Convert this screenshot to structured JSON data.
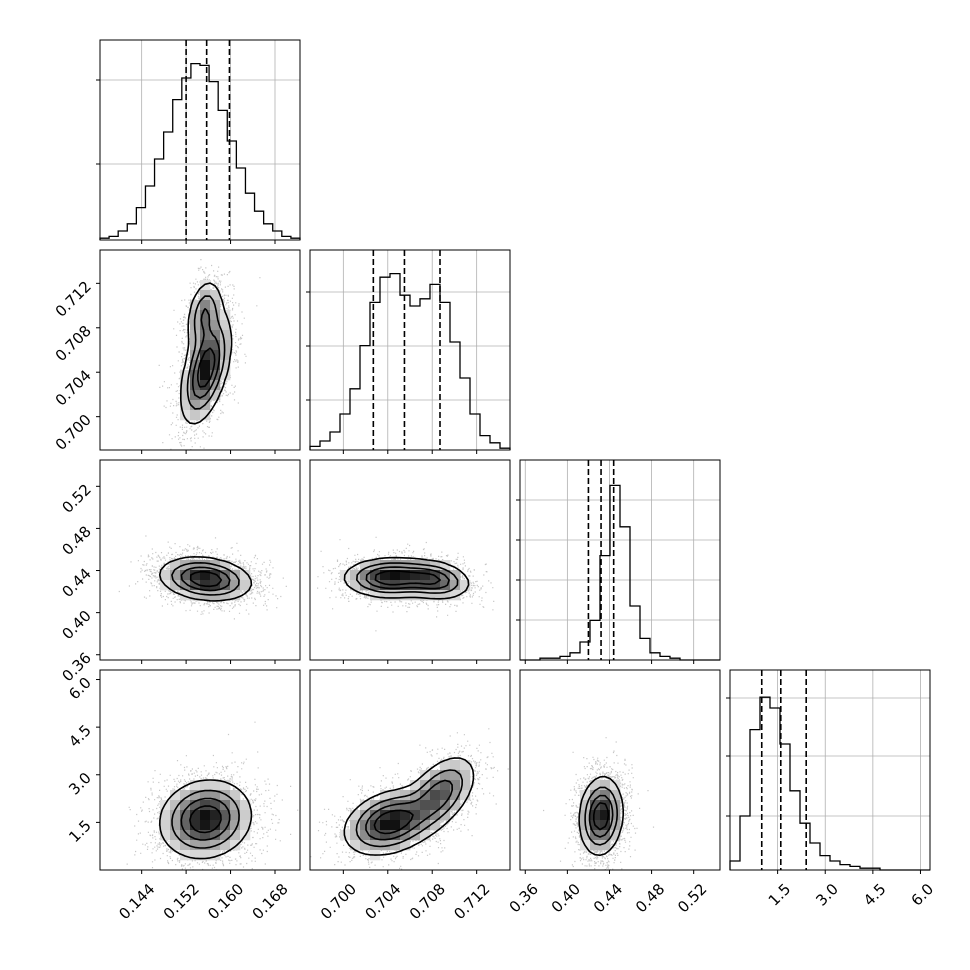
{
  "chart_data": {
    "type": "corner",
    "title": "",
    "parameters": [
      {
        "ticks": [
          0.144,
          0.152,
          0.16,
          0.168
        ],
        "tick_labels": [
          "0.144",
          "0.152",
          "0.160",
          "0.168"
        ],
        "range": [
          0.1365,
          0.1725
        ]
      },
      {
        "ticks": [
          0.7,
          0.704,
          0.708,
          0.712
        ],
        "tick_labels": [
          "0.700",
          "0.704",
          "0.708",
          "0.712"
        ],
        "range": [
          0.697,
          0.715
        ]
      },
      {
        "ticks": [
          0.36,
          0.4,
          0.44,
          0.48,
          0.52
        ],
        "tick_labels": [
          "0.36",
          "0.40",
          "0.44",
          "0.48",
          "0.52"
        ],
        "range": [
          0.355,
          0.545
        ]
      },
      {
        "ticks": [
          1.5,
          3.0,
          4.5,
          6.0
        ],
        "tick_labels": [
          "1.5",
          "3.0",
          "4.5",
          "6.0"
        ],
        "range": [
          0.0,
          6.3
        ]
      }
    ],
    "quantiles": [
      [
        0.152,
        0.1557,
        0.1598
      ],
      [
        0.7027,
        0.7055,
        0.7087
      ],
      [
        0.42,
        0.432,
        0.444
      ],
      [
        1.0,
        1.6,
        2.4
      ]
    ],
    "histograms": [
      {
        "edges_range": [
          0.1365,
          0.1725
        ],
        "counts": [
          0.01,
          0.02,
          0.05,
          0.09,
          0.18,
          0.3,
          0.45,
          0.6,
          0.78,
          0.9,
          0.98,
          0.97,
          0.88,
          0.72,
          0.55,
          0.4,
          0.26,
          0.16,
          0.09,
          0.05,
          0.02,
          0.01
        ],
        "ygrid": [
          0.38,
          0.8
        ]
      },
      {
        "edges_range": [
          0.697,
          0.715
        ],
        "counts": [
          0.02,
          0.05,
          0.1,
          0.2,
          0.34,
          0.58,
          0.82,
          0.96,
          0.98,
          0.86,
          0.8,
          0.84,
          0.92,
          0.82,
          0.6,
          0.4,
          0.2,
          0.08,
          0.04,
          0.01
        ],
        "ygrid": [
          0.25,
          0.52,
          0.79
        ]
      },
      {
        "edges_range": [
          0.355,
          0.545
        ],
        "counts": [
          0.0,
          0.0,
          0.01,
          0.01,
          0.02,
          0.04,
          0.1,
          0.22,
          0.58,
          0.97,
          0.74,
          0.3,
          0.12,
          0.04,
          0.02,
          0.01,
          0.0,
          0.0,
          0.0,
          0.0
        ],
        "ygrid": [
          0.2,
          0.4,
          0.6,
          0.8
        ]
      },
      {
        "edges_range": [
          0.0,
          6.3
        ],
        "counts": [
          0.05,
          0.3,
          0.78,
          0.96,
          0.9,
          0.7,
          0.44,
          0.26,
          0.15,
          0.08,
          0.05,
          0.03,
          0.02,
          0.01,
          0.01,
          0.0,
          0.0,
          0.0,
          0.0,
          0.0
        ],
        "ygrid": [
          0.27,
          0.57,
          0.86
        ]
      }
    ],
    "pair_panels": [
      {
        "row": 1,
        "col": 0,
        "centers": [
          [
            0.1556,
            0.7043,
            0.0022,
            0.0024,
            0.5,
            1.0
          ],
          [
            0.1553,
            0.7092,
            0.0016,
            0.0016,
            0.3,
            0.55
          ]
        ]
      },
      {
        "row": 2,
        "col": 0,
        "centers": [
          [
            0.1555,
            0.432,
            0.004,
            0.01,
            -0.2,
            1.0
          ]
        ]
      },
      {
        "row": 2,
        "col": 1,
        "centers": [
          [
            0.7042,
            0.433,
            0.002,
            0.009,
            0.0,
            1.0
          ],
          [
            0.7082,
            0.431,
            0.0016,
            0.009,
            -0.2,
            0.75
          ]
        ]
      },
      {
        "row": 3,
        "col": 0,
        "centers": [
          [
            0.1555,
            1.6,
            0.004,
            0.6,
            0.1,
            1.0
          ]
        ]
      },
      {
        "row": 3,
        "col": 1,
        "centers": [
          [
            0.7042,
            1.5,
            0.002,
            0.5,
            0.3,
            1.0
          ],
          [
            0.7087,
            2.4,
            0.0016,
            0.6,
            0.5,
            0.7
          ]
        ]
      },
      {
        "row": 3,
        "col": 2,
        "centers": [
          [
            0.432,
            1.7,
            0.01,
            0.6,
            0.1,
            1.0
          ]
        ]
      }
    ],
    "contour_levels": [
      0.12,
      0.32,
      0.55,
      0.78
    ],
    "grid": true,
    "colors": {
      "axis": "#000000",
      "grid": "#b0b0b0",
      "points": "#000000"
    }
  }
}
